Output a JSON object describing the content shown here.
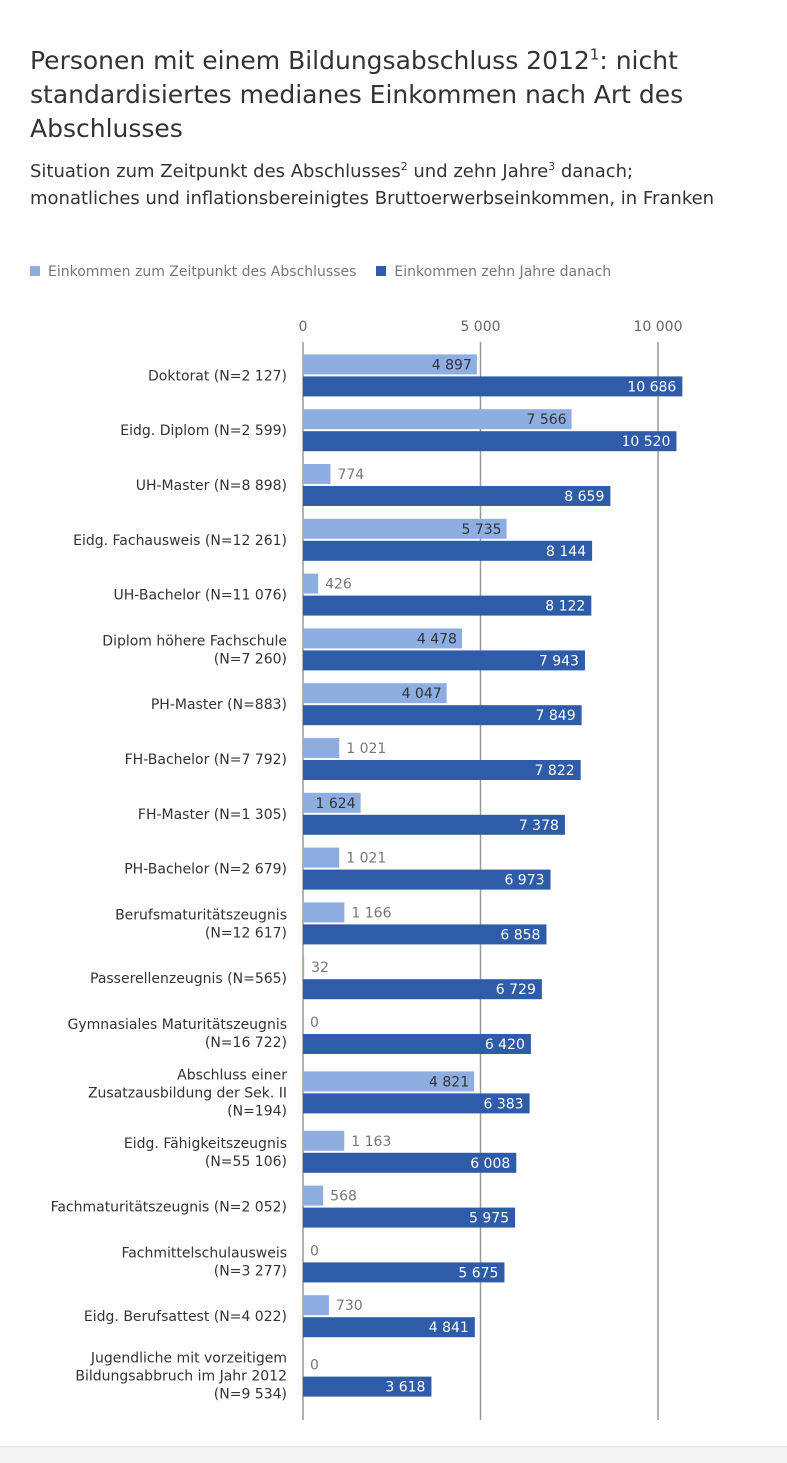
{
  "title": "Personen mit einem Bildungsabschluss 2012",
  "title_sup": "1",
  "title_rest": ": nicht standardisiertes medianes Einkommen nach Art des Abschlusses",
  "subtitle_a": "Situation zum Zeitpunkt des Abschlusses",
  "subtitle_sup1": "2",
  "subtitle_b": " und zehn Jahre",
  "subtitle_sup2": "3",
  "subtitle_c": " danach; monatliches und inflationsbereinigtes Bruttoerwerbseinkommen, in Franken",
  "chart_data": {
    "type": "bar",
    "orientation": "horizontal",
    "xlim": [
      0,
      11000
    ],
    "xticks": [
      0,
      5000,
      10000
    ],
    "xtick_labels": [
      "0",
      "5 000",
      "10 000"
    ],
    "categories": [
      [
        "Doktorat (N=2 127)"
      ],
      [
        "Eidg. Diplom (N=2 599)"
      ],
      [
        "UH-Master (N=8 898)"
      ],
      [
        "Eidg. Fachausweis (N=12 261)"
      ],
      [
        "UH-Bachelor (N=11 076)"
      ],
      [
        "Diplom höhere Fachschule",
        "(N=7 260)"
      ],
      [
        "PH-Master (N=883)"
      ],
      [
        "FH-Bachelor (N=7 792)"
      ],
      [
        "FH-Master (N=1 305)"
      ],
      [
        "PH-Bachelor (N=2 679)"
      ],
      [
        "Berufsmaturitätszeugnis",
        "(N=12 617)"
      ],
      [
        "Passerellenzeugnis (N=565)"
      ],
      [
        "Gymnasiales Maturitätszeugnis",
        "(N=16 722)"
      ],
      [
        "Abschluss einer",
        "Zusatzausbildung der Sek. II",
        "(N=194)"
      ],
      [
        "Eidg. Fähigkeitszeugnis",
        "(N=55 106)"
      ],
      [
        "Fachmaturitätszeugnis (N=2 052)"
      ],
      [
        "Fachmittelschulausweis",
        "(N=3 277)"
      ],
      [
        "Eidg. Berufsattest (N=4 022)"
      ],
      [
        "Jugendliche mit vorzeitigem",
        "Bildungsabbruch im Jahr 2012",
        "(N=9 534)"
      ]
    ],
    "series": [
      {
        "name": "Einkommen zum Zeitpunkt des Abschlusses",
        "color": "#8eaee2",
        "values": [
          4897,
          7566,
          774,
          5735,
          426,
          4478,
          4047,
          1021,
          1624,
          1021,
          1166,
          32,
          0,
          4821,
          1163,
          568,
          0,
          730,
          0
        ],
        "labels": [
          "4 897",
          "7 566",
          "774",
          "5 735",
          "426",
          "4 478",
          "4 047",
          "1 021",
          "1 624",
          "1 021",
          "1 166",
          "32",
          "0",
          "4 821",
          "1 163",
          "568",
          "0",
          "730",
          "0"
        ]
      },
      {
        "name": "Einkommen zehn Jahre danach",
        "color": "#2f5ca8",
        "values": [
          10686,
          10520,
          8659,
          8144,
          8122,
          7943,
          7849,
          7822,
          7378,
          6973,
          6858,
          6729,
          6420,
          6383,
          6008,
          5975,
          5675,
          4841,
          3618
        ],
        "labels": [
          "10 686",
          "10 520",
          "8 659",
          "8 144",
          "8 122",
          "7 943",
          "7 849",
          "7 822",
          "7 378",
          "6 973",
          "6 858",
          "6 729",
          "6 420",
          "6 383",
          "6 008",
          "5 975",
          "5 675",
          "4 841",
          "3 618"
        ]
      }
    ],
    "legend_position": "top-left"
  }
}
